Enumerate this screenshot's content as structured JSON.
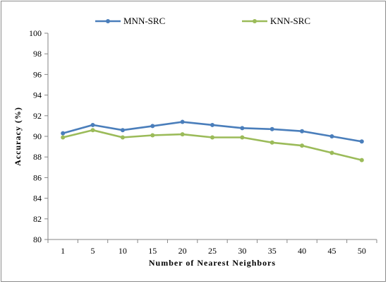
{
  "chart_data": {
    "type": "line",
    "x": [
      "1",
      "5",
      "10",
      "15",
      "20",
      "25",
      "30",
      "35",
      "40",
      "45",
      "50"
    ],
    "xlabel": "Number of Nearest Neighbors",
    "ylabel": "Accuracy  (%)",
    "ylim": [
      80,
      100
    ],
    "yticks": [
      80,
      82,
      84,
      86,
      88,
      90,
      92,
      94,
      96,
      98,
      100
    ],
    "grid": false,
    "legend_position": "top",
    "series": [
      {
        "name": "MNN-SRC",
        "color": "#4a7ebb",
        "values": [
          90.3,
          91.1,
          90.6,
          91.0,
          91.4,
          91.1,
          90.8,
          90.7,
          90.5,
          90.0,
          89.5
        ]
      },
      {
        "name": "KNN-SRC",
        "color": "#9bbb59",
        "values": [
          89.9,
          90.6,
          89.9,
          90.1,
          90.2,
          89.9,
          89.9,
          89.4,
          89.1,
          88.4,
          87.7
        ]
      }
    ]
  }
}
